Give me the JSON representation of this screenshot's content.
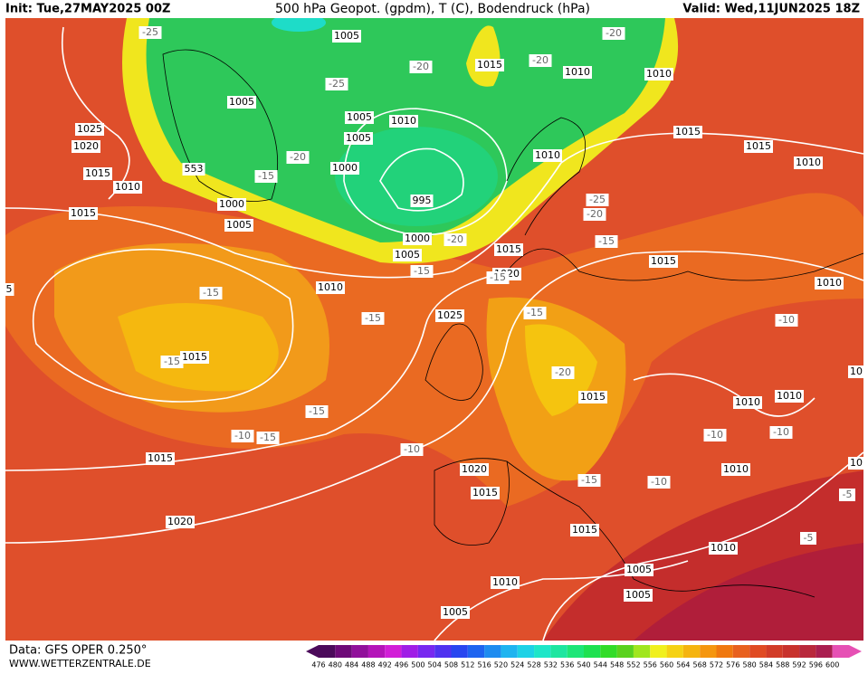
{
  "header": {
    "init": "Init: Tue,27MAY2025 00Z",
    "title": "500 hPa Geopot. (gpdm), T (C), Bodendruck (hPa)",
    "valid": "Valid: Wed,11JUN2025 18Z"
  },
  "footer": {
    "data": "Data: GFS OPER 0.250°",
    "site": "WWW.WETTERZENTRALE.DE"
  },
  "colorbar": {
    "ticks": [
      476,
      480,
      484,
      488,
      492,
      496,
      500,
      504,
      508,
      512,
      516,
      520,
      524,
      528,
      532,
      536,
      540,
      544,
      548,
      552,
      556,
      560,
      564,
      568,
      572,
      576,
      580,
      584,
      588,
      592,
      596,
      600
    ],
    "colors": [
      "#4b0a5a",
      "#6e0a78",
      "#91109b",
      "#b414b9",
      "#d21ed7",
      "#a01ee6",
      "#7828f0",
      "#5032f0",
      "#2846f0",
      "#1e64f0",
      "#1e8cf0",
      "#1eb4f0",
      "#1ed2e6",
      "#1ee6c8",
      "#1ee6a0",
      "#1ee678",
      "#1ee150",
      "#32dc28",
      "#5ad21e",
      "#a0e61e",
      "#f0f01e",
      "#f5d214",
      "#f5b40f",
      "#f5960f",
      "#f0780f",
      "#e8601e",
      "#e04b23",
      "#d23c28",
      "#c8322d",
      "#b9283c",
      "#aa1e50",
      "#e650b4"
    ]
  },
  "isobar_labels": [
    "1005",
    "1015",
    "1010",
    "1010",
    "1005",
    "1005",
    "1010",
    "1025",
    "1005",
    "1020",
    "1015",
    "1015",
    "1010",
    "1000",
    "1010",
    "1015",
    "1010",
    "995",
    "1000",
    "1015",
    "1005",
    "1000",
    "1005",
    "1015",
    "1015",
    "1020",
    "1010",
    "1010",
    "1025",
    "1015",
    "1010",
    "1010",
    "1015",
    "1015",
    "1010",
    "1020",
    "1015",
    "1020",
    "1015",
    "1010",
    "1005",
    "1010",
    "1005",
    "1005",
    "10",
    "10",
    "5",
    "553"
  ],
  "temp_labels": [
    "-25",
    "-20",
    "-20",
    "-20",
    "-25",
    "-20",
    "-15",
    "-25",
    "-20",
    "-20",
    "-15",
    "-15",
    "-15",
    "-15",
    "-15",
    "-15",
    "-10",
    "-15",
    "-20",
    "-15",
    "-10",
    "-15",
    "-10",
    "-10",
    "-10",
    "-15",
    "-10",
    "-5",
    "-5"
  ]
}
